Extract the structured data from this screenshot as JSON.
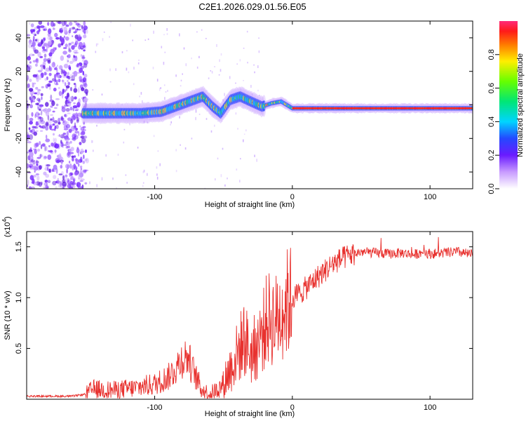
{
  "title": "C2E1.2026.029.01.56.E05",
  "chart_data": [
    {
      "type": "heatmap",
      "xlabel": "Height of straight line (km)",
      "ylabel": "Frequency (Hz)",
      "xlim": [
        -193,
        131
      ],
      "ylim": [
        -50,
        50
      ],
      "x_ticks": [
        -100,
        0,
        100
      ],
      "x_tick_labels": [
        "-100",
        "0",
        "100"
      ],
      "y_ticks": [
        -40,
        -20,
        0,
        20,
        40
      ],
      "y_tick_labels": [
        "-40",
        "-20",
        "0",
        "20",
        "40"
      ],
      "colorbar": {
        "label": "Normalized spectral amplitude",
        "range": [
          0.0,
          1.0
        ],
        "ticks": [
          0.0,
          0.2,
          0.4,
          0.6,
          0.8
        ],
        "tick_labels": [
          "0.0",
          "0.2",
          "0.4",
          "0.6",
          "0.8"
        ]
      },
      "ridge": {
        "x": [
          -150,
          -130,
          -110,
          -95,
          -85,
          -75,
          -65,
          -58,
          -52,
          -45,
          -38,
          -30,
          -22,
          -15,
          -8,
          0,
          20,
          40,
          60,
          80,
          100,
          120,
          131
        ],
        "frequency": [
          -5,
          -5,
          -5,
          -4,
          -1,
          2,
          5,
          -1,
          -5,
          3,
          5,
          2,
          -1,
          1,
          2,
          -2,
          -2,
          -2,
          -2,
          -2,
          -2,
          -2,
          -2
        ]
      }
    },
    {
      "type": "line",
      "xlabel": "Height of straight line (km)",
      "ylabel": "SNR (10 * v/v)",
      "multiplier_label": "(x10",
      "multiplier_exponent": "4",
      "xlim": [
        -193,
        131
      ],
      "ylim": [
        0,
        1.65
      ],
      "x_ticks": [
        -100,
        0,
        100
      ],
      "x_tick_labels": [
        "-100",
        "0",
        "100"
      ],
      "y_ticks": [
        0.5,
        1.0,
        1.5
      ],
      "y_tick_labels": [
        "0.5",
        "1.0",
        "1.5"
      ],
      "series": [
        {
          "name": "SNR",
          "color": "#e8312e",
          "x": [
            -193,
            -160,
            -150,
            -145,
            -130,
            -115,
            -100,
            -90,
            -85,
            -80,
            -76,
            -72,
            -66,
            -60,
            -52,
            -45,
            -40,
            -35,
            -30,
            -25,
            -22,
            -18,
            -12,
            -6,
            0,
            6,
            12,
            18,
            24,
            30,
            36,
            42,
            50,
            60,
            70,
            80,
            88,
            95,
            100,
            110,
            120,
            131
          ],
          "values": [
            0.03,
            0.03,
            0.05,
            0.1,
            0.09,
            0.11,
            0.15,
            0.22,
            0.3,
            0.4,
            0.42,
            0.28,
            0.1,
            0.05,
            0.12,
            0.3,
            0.45,
            0.6,
            0.45,
            0.55,
            0.65,
            0.8,
            0.78,
            0.92,
            1.0,
            1.05,
            1.12,
            1.2,
            1.27,
            1.34,
            1.38,
            1.42,
            1.45,
            1.44,
            1.43,
            1.44,
            1.42,
            1.45,
            1.43,
            1.44,
            1.45,
            1.42
          ]
        }
      ]
    }
  ]
}
